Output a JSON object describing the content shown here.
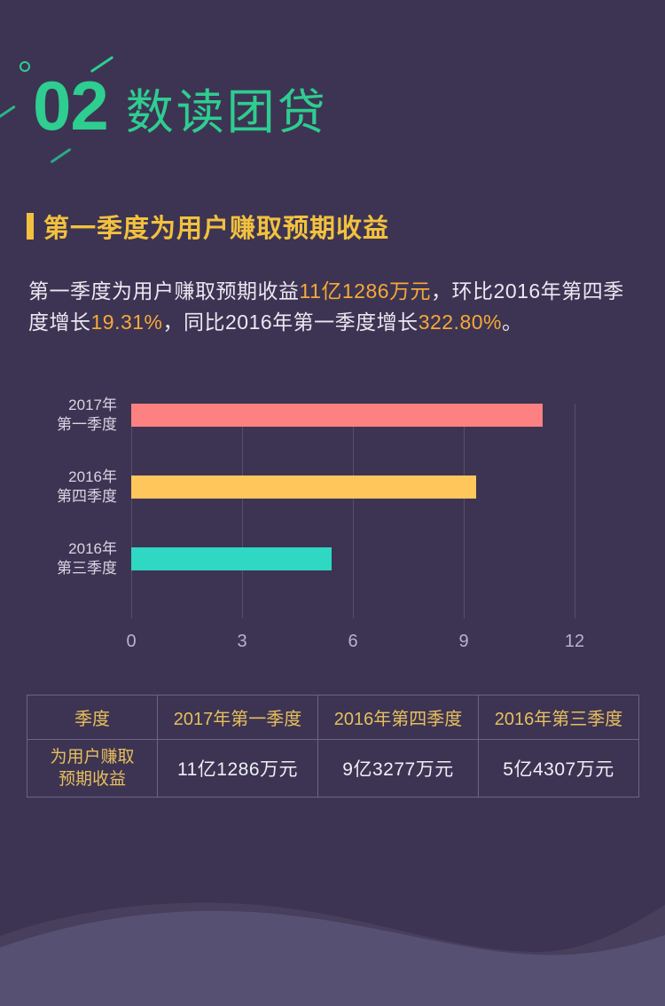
{
  "colors": {
    "background": "#3d3453",
    "accent_green": "#2ecd90",
    "accent_gold": "#f2c13e",
    "highlight_orange": "#f6a937"
  },
  "header": {
    "section_number": "02",
    "title": "数读团贷"
  },
  "section": {
    "title": "第一季度为用户赚取预期收益",
    "paragraph_segments": [
      {
        "text": "第一季度为用户赚取预期收益",
        "highlight": false
      },
      {
        "text": "11亿1286万元",
        "highlight": true
      },
      {
        "text": "，环比2016年第四季度增长",
        "highlight": false
      },
      {
        "text": "19.31%",
        "highlight": true
      },
      {
        "text": "，同比2016年第一季度增长",
        "highlight": false
      },
      {
        "text": "322.80%",
        "highlight": true
      },
      {
        "text": "。",
        "highlight": false
      }
    ]
  },
  "chart_data": {
    "type": "bar",
    "orientation": "horizontal",
    "categories": [
      "2017年第一季度",
      "2016年第四季度",
      "2016年第三季度"
    ],
    "label_lines": [
      "2017年\n第一季度",
      "2016年\n第四季度",
      "2016年\n第三季度"
    ],
    "values": [
      11.1286,
      9.3277,
      5.4307
    ],
    "unit": "亿元",
    "bar_colors": [
      "#fd8181",
      "#ffc65c",
      "#2ed8c3"
    ],
    "xlim": [
      0,
      12
    ],
    "xticks": [
      0,
      3,
      6,
      9,
      12
    ],
    "grid": true,
    "legend": false
  },
  "table": {
    "columns": [
      "季度",
      "2017年第一季度",
      "2016年第四季度",
      "2016年第三季度"
    ],
    "rows": [
      {
        "label": "为用户赚取\n预期收益",
        "values": [
          "11亿1286万元",
          "9亿3277万元",
          "5亿4307万元"
        ]
      }
    ]
  }
}
